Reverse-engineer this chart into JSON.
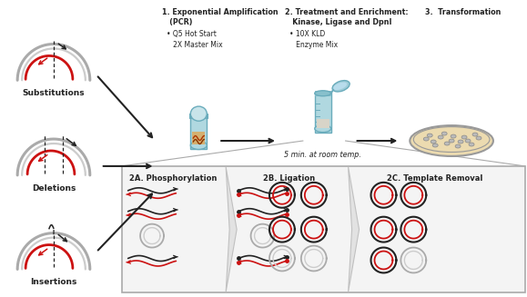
{
  "bg_color": "#ffffff",
  "step1_title": "1. Exponential Amplification\n   (PCR)",
  "step1_bullet": "• Q5 Hot Start\n   2X Master Mix",
  "step2_title": "2. Treatment and Enrichment:\n   Kinase, Ligase and DpnI",
  "step2_bullet": "• 10X KLD\n   Enzyme Mix",
  "step3_title": "3.  Transformation",
  "label_substitutions": "Substitutions",
  "label_deletions": "Deletions",
  "label_insertions": "Insertions",
  "label_5min": "5 min. at room temp.",
  "label_2a": "2A. Phosphorylation",
  "label_2b": "2B. Ligation",
  "label_2c": "2C. Template Removal",
  "gray1": "#aaaaaa",
  "gray2": "#cccccc",
  "red": "#cc1111",
  "blk": "#222222",
  "teal_body": "#b0d8e0",
  "teal_dark": "#6aacbc",
  "petri_fill": "#ecdbb0",
  "petri_edge": "#999999",
  "colony_fill": "#bbbbbb",
  "colony_edge": "#888888",
  "box_bg": "#f4f4f4",
  "box_edge": "#aaaaaa",
  "chev_fill": "#e2e2e2",
  "chev_edge": "#c0c0c0"
}
